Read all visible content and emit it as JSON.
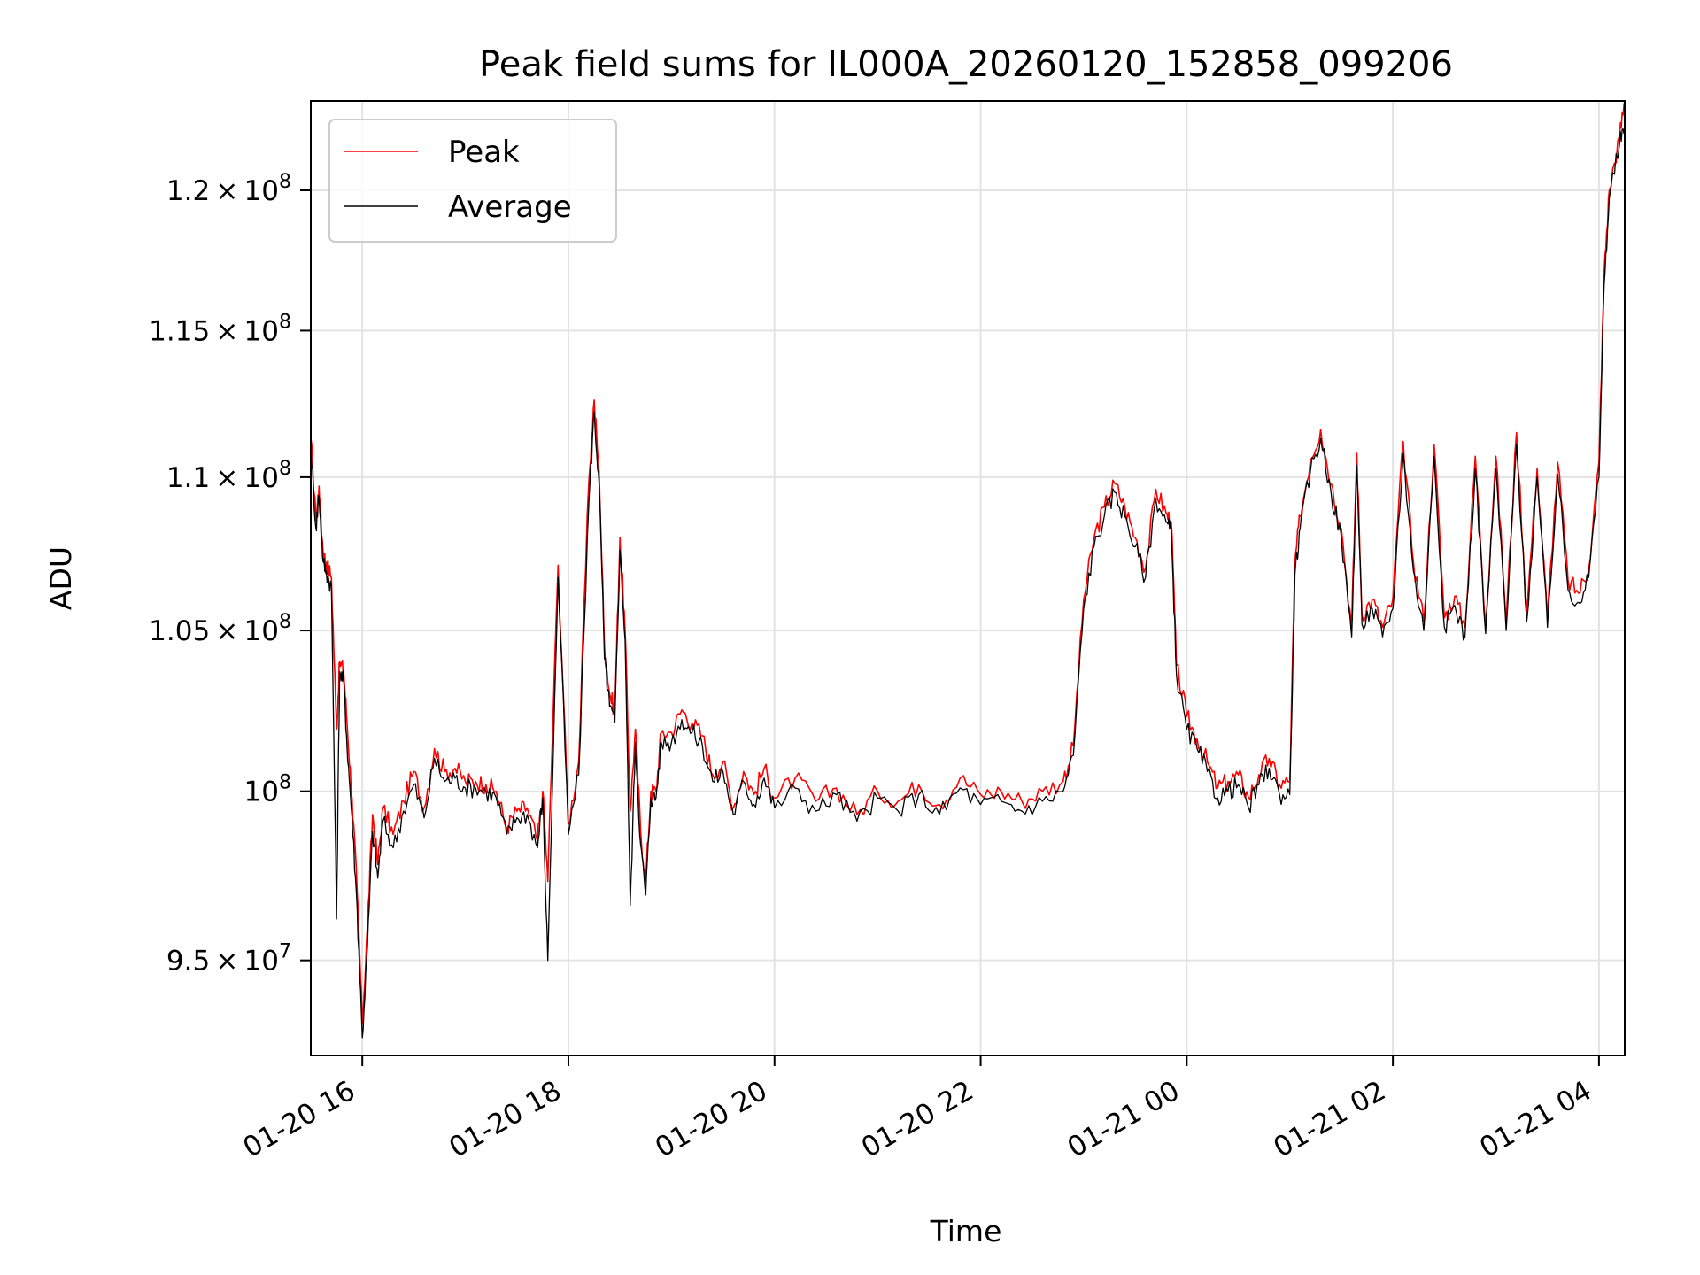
{
  "chart_data": {
    "type": "line",
    "title": "Peak field sums for IL000A_20260120_152858_099206",
    "xlabel": "Time",
    "ylabel": "ADU",
    "xlim_hours": [
      -0.5,
      12.25
    ],
    "ylim": [
      92300000,
      123300000
    ],
    "yscale": "log",
    "grid": true,
    "legend": {
      "location": "upper-left",
      "entries": [
        "Peak",
        "Average"
      ]
    },
    "x_ticks": [
      {
        "hour": 0,
        "label": "01-20 16"
      },
      {
        "hour": 2,
        "label": "01-20 18"
      },
      {
        "hour": 4,
        "label": "01-20 20"
      },
      {
        "hour": 6,
        "label": "01-20 22"
      },
      {
        "hour": 8,
        "label": "01-21 00"
      },
      {
        "hour": 10,
        "label": "01-21 02"
      },
      {
        "hour": 12,
        "label": "01-21 04"
      }
    ],
    "y_ticks": [
      {
        "value": 95000000,
        "mantissa": "9.5",
        "exponent": "7"
      },
      {
        "value": 100000000,
        "mantissa": "",
        "exponent": "8"
      },
      {
        "value": 105000000,
        "mantissa": "1.05",
        "exponent": "8"
      },
      {
        "value": 110000000,
        "mantissa": "1.1",
        "exponent": "8"
      },
      {
        "value": 115000000,
        "mantissa": "1.15",
        "exponent": "8"
      },
      {
        "value": 120000000,
        "mantissa": "1.2",
        "exponent": "8"
      }
    ],
    "series": [
      {
        "name": "Peak",
        "color": "#ff0000",
        "x_hours": [
          -0.5,
          -0.45,
          -0.42,
          -0.38,
          -0.35,
          -0.3,
          -0.25,
          -0.22,
          -0.18,
          -0.15,
          -0.1,
          -0.05,
          0.0,
          0.05,
          0.1,
          0.15,
          0.2,
          0.3,
          0.4,
          0.5,
          0.6,
          0.7,
          0.8,
          0.9,
          1.0,
          1.1,
          1.2,
          1.3,
          1.4,
          1.5,
          1.6,
          1.7,
          1.75,
          1.8,
          1.9,
          2.0,
          2.1,
          2.2,
          2.25,
          2.3,
          2.35,
          2.4,
          2.45,
          2.5,
          2.55,
          2.6,
          2.65,
          2.7,
          2.75,
          2.8,
          2.85,
          2.9,
          3.0,
          3.1,
          3.2,
          3.3,
          3.4,
          3.5,
          3.6,
          3.7,
          3.8,
          3.9,
          4.0,
          4.2,
          4.4,
          4.6,
          4.8,
          5.0,
          5.2,
          5.4,
          5.6,
          5.8,
          6.0,
          6.2,
          6.4,
          6.6,
          6.8,
          6.9,
          7.0,
          7.1,
          7.2,
          7.3,
          7.4,
          7.5,
          7.6,
          7.7,
          7.8,
          7.85,
          7.9,
          8.0,
          8.1,
          8.2,
          8.3,
          8.4,
          8.5,
          8.6,
          8.7,
          8.8,
          8.9,
          9.0,
          9.05,
          9.1,
          9.2,
          9.3,
          9.4,
          9.5,
          9.6,
          9.65,
          9.7,
          9.8,
          9.9,
          10.0,
          10.1,
          10.2,
          10.3,
          10.4,
          10.5,
          10.6,
          10.7,
          10.8,
          10.9,
          11.0,
          11.1,
          11.2,
          11.3,
          11.4,
          11.5,
          11.6,
          11.7,
          11.8,
          11.9,
          12.0,
          12.05,
          12.1,
          12.2,
          12.25
        ],
        "values": [
          111300000,
          108600000,
          109700000,
          107500000,
          107200000,
          106700000,
          101900000,
          104000000,
          103700000,
          102200000,
          99800000,
          97000000,
          93200000,
          96000000,
          99300000,
          97800000,
          99500000,
          98700000,
          99700000,
          100600000,
          99500000,
          101300000,
          100600000,
          100700000,
          100300000,
          100300000,
          100200000,
          100000000,
          98900000,
          99400000,
          99500000,
          98500000,
          100000000,
          97300000,
          107100000,
          99000000,
          100900000,
          110000000,
          112600000,
          110000000,
          104500000,
          103000000,
          102500000,
          108000000,
          105000000,
          99400000,
          101900000,
          98800000,
          97300000,
          100000000,
          100000000,
          101800000,
          101800000,
          102500000,
          102100000,
          101700000,
          100500000,
          100900000,
          99500000,
          100600000,
          99900000,
          100700000,
          99800000,
          100400000,
          99700000,
          100100000,
          99300000,
          100000000,
          99700000,
          100200000,
          99600000,
          100400000,
          99900000,
          100000000,
          99700000,
          100000000,
          100300000,
          101400000,
          106000000,
          108000000,
          109000000,
          109800000,
          109000000,
          108000000,
          107000000,
          109600000,
          108800000,
          108500000,
          103900000,
          102300000,
          101600000,
          100900000,
          100100000,
          100300000,
          100500000,
          99800000,
          100500000,
          101000000,
          100200000,
          100300000,
          107200000,
          108700000,
          110600000,
          111600000,
          109800000,
          108300000,
          105100000,
          110800000,
          105500000,
          106000000,
          105100000,
          106000000,
          111200000,
          107200000,
          105300000,
          111100000,
          105400000,
          106100000,
          105100000,
          110700000,
          105200000,
          110700000,
          105300000,
          111500000,
          105600000,
          110300000,
          105400000,
          110500000,
          106600000,
          106200000,
          107000000,
          110500000,
          117000000,
          120000000,
          122000000,
          123300000
        ],
        "hidden_note": ""
      },
      {
        "name": "Average",
        "color": "#000000",
        "x_hours": [
          -0.5,
          -0.45,
          -0.42,
          -0.38,
          -0.35,
          -0.3,
          -0.25,
          -0.22,
          -0.18,
          -0.15,
          -0.1,
          -0.05,
          0.0,
          0.05,
          0.1,
          0.15,
          0.2,
          0.3,
          0.4,
          0.5,
          0.6,
          0.7,
          0.8,
          0.9,
          1.0,
          1.1,
          1.2,
          1.3,
          1.4,
          1.5,
          1.6,
          1.7,
          1.75,
          1.8,
          1.9,
          2.0,
          2.1,
          2.2,
          2.25,
          2.3,
          2.35,
          2.4,
          2.45,
          2.5,
          2.55,
          2.6,
          2.65,
          2.7,
          2.75,
          2.8,
          2.85,
          2.9,
          3.0,
          3.1,
          3.2,
          3.3,
          3.4,
          3.5,
          3.6,
          3.7,
          3.8,
          3.9,
          4.0,
          4.2,
          4.4,
          4.6,
          4.8,
          5.0,
          5.2,
          5.4,
          5.6,
          5.8,
          6.0,
          6.2,
          6.4,
          6.6,
          6.8,
          6.9,
          7.0,
          7.1,
          7.2,
          7.3,
          7.4,
          7.5,
          7.6,
          7.7,
          7.8,
          7.85,
          7.9,
          8.0,
          8.1,
          8.2,
          8.3,
          8.4,
          8.5,
          8.6,
          8.7,
          8.8,
          8.9,
          9.0,
          9.05,
          9.1,
          9.2,
          9.3,
          9.4,
          9.5,
          9.6,
          9.65,
          9.7,
          9.8,
          9.9,
          10.0,
          10.1,
          10.2,
          10.3,
          10.4,
          10.5,
          10.6,
          10.7,
          10.8,
          10.9,
          11.0,
          11.1,
          11.2,
          11.3,
          11.4,
          11.5,
          11.6,
          11.7,
          11.8,
          11.9,
          12.0,
          12.05,
          12.1,
          12.2,
          12.25
        ],
        "values": [
          111000000,
          108300000,
          109400000,
          107200000,
          106900000,
          106400000,
          96200000,
          103700000,
          103400000,
          101500000,
          99200000,
          96500000,
          92800000,
          95400000,
          98800000,
          97400000,
          99100000,
          98300000,
          99400000,
          100200000,
          99200000,
          101000000,
          100300000,
          100400000,
          100100000,
          100100000,
          100000000,
          99800000,
          98700000,
          99200000,
          99300000,
          98300000,
          99800000,
          95000000,
          106700000,
          98700000,
          100500000,
          109300000,
          112200000,
          109600000,
          104100000,
          102600000,
          102100000,
          107600000,
          104700000,
          96600000,
          101500000,
          98400000,
          96900000,
          99800000,
          99800000,
          101500000,
          101500000,
          102200000,
          101800000,
          101400000,
          100300000,
          100600000,
          99300000,
          100300000,
          99600000,
          100400000,
          99500000,
          100100000,
          99400000,
          99900000,
          99100000,
          99800000,
          99400000,
          99900000,
          99300000,
          100100000,
          99600000,
          99700000,
          99400000,
          99700000,
          100000000,
          101100000,
          105700000,
          107700000,
          108700000,
          109500000,
          108700000,
          107700000,
          106700000,
          109300000,
          108500000,
          108200000,
          103600000,
          101900000,
          101300000,
          100600000,
          99800000,
          100000000,
          100200000,
          99500000,
          100200000,
          100700000,
          99900000,
          99900000,
          106800000,
          108300000,
          110200000,
          111300000,
          109500000,
          108000000,
          104800000,
          110400000,
          105200000,
          105700000,
          104800000,
          105700000,
          110800000,
          106900000,
          105000000,
          110700000,
          105100000,
          105800000,
          104800000,
          110300000,
          104900000,
          110300000,
          105000000,
          111100000,
          105300000,
          110000000,
          105100000,
          110100000,
          106300000,
          105900000,
          106700000,
          110000000,
          116600000,
          119700000,
          121700000,
          122300000
        ],
        "hidden_note": ""
      }
    ]
  }
}
